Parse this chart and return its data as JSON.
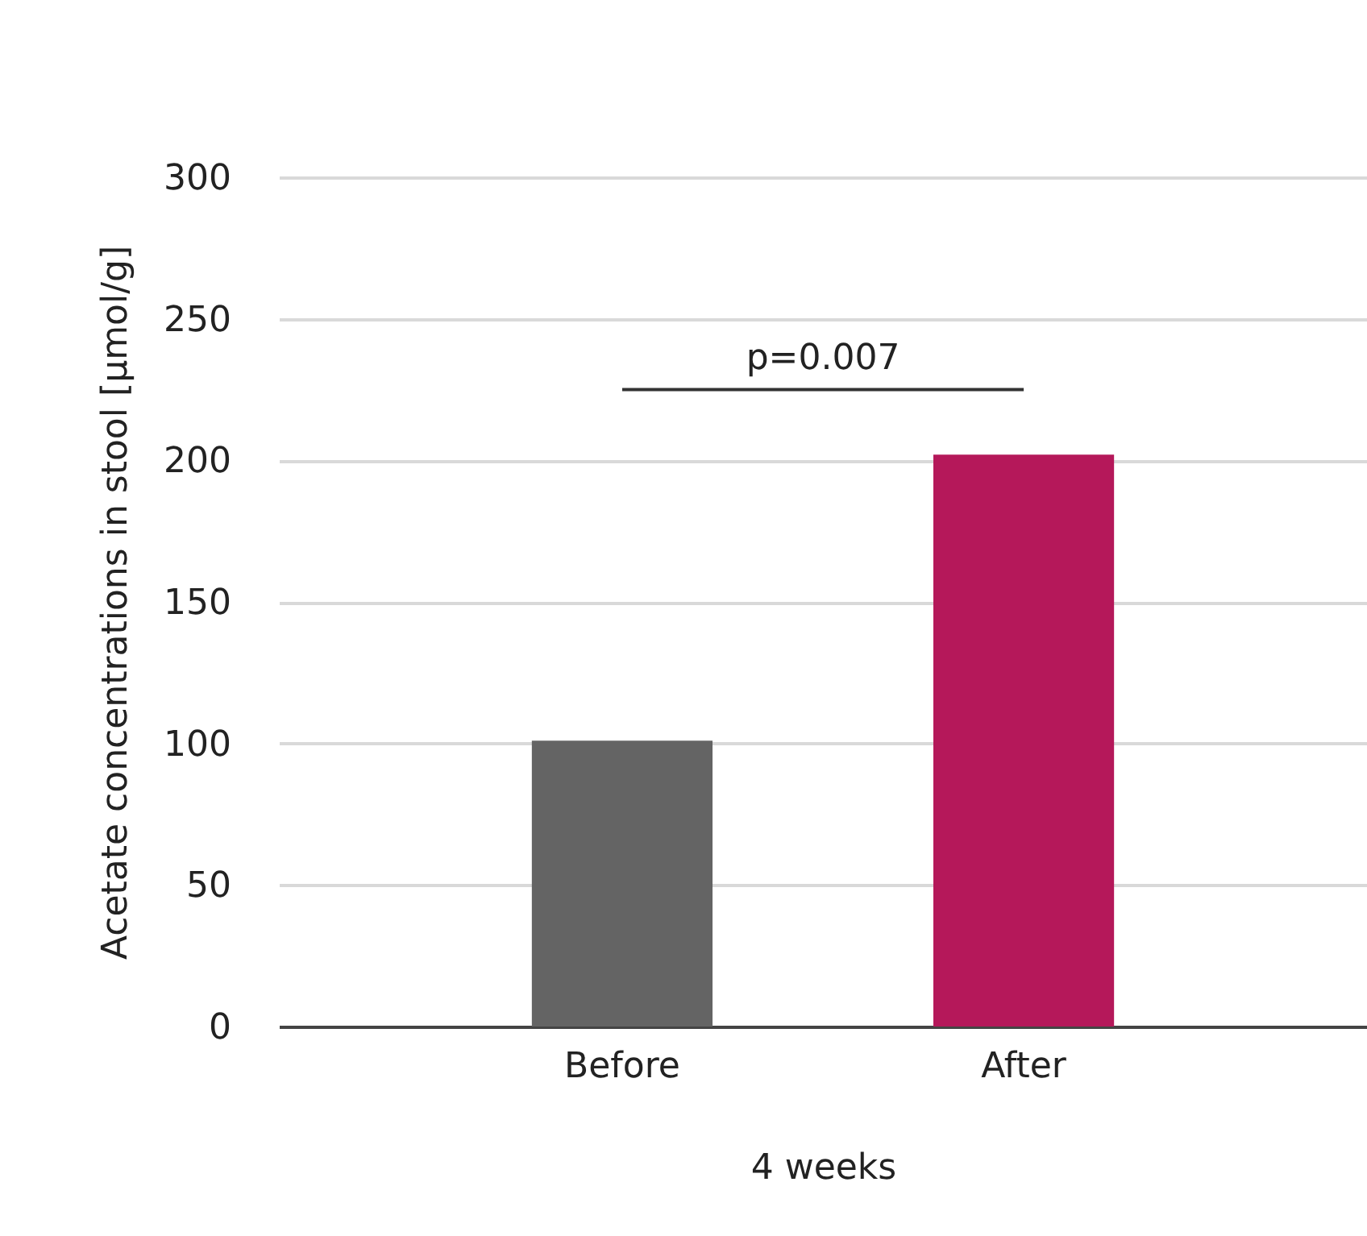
{
  "chart_data": {
    "type": "bar",
    "xlabel": "4 weeks",
    "ylabel": "Acetate concentrations in stool [µmol/g]",
    "categories": [
      "Before",
      "After"
    ],
    "values": [
      101,
      202
    ],
    "colors": [
      "#646464",
      "#b5185a"
    ],
    "ylim": [
      0,
      300
    ],
    "yticks": [
      0,
      50,
      100,
      150,
      200,
      250,
      300
    ],
    "grid": "y",
    "annotations": [
      "p=0.007"
    ]
  }
}
